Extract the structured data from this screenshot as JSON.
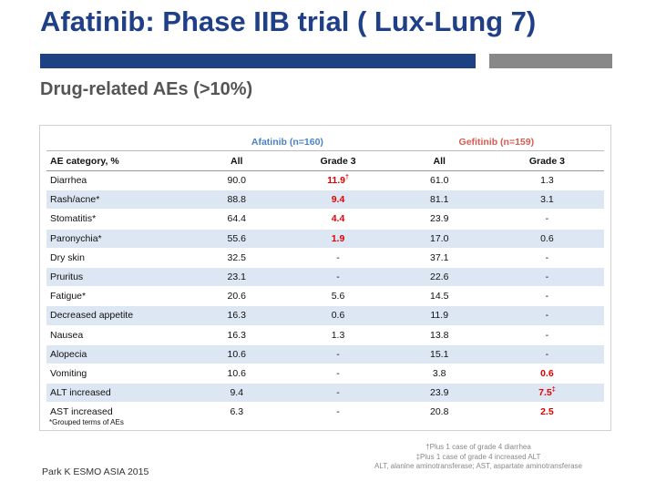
{
  "title": "Afatinib: Phase IIB trial ( Lux-Lung 7)",
  "subtitle": "Drug-related AEs (>10%)",
  "colors": {
    "title": "#1f3f86",
    "afatinib_header": "#4a83c4",
    "gefitinib_header": "#d95a50",
    "highlight": "#e20000",
    "row_alt": "#dde6f3"
  },
  "table": {
    "group_headers": [
      "Afatinib (n=160)",
      "Gefitinib (n=159)"
    ],
    "columns": [
      "AE category, %",
      "All",
      "Grade 3",
      "All",
      "Grade 3"
    ],
    "rows": [
      {
        "cat": "Diarrhea",
        "a_all": "90.0",
        "a_g3": "11.9",
        "a_g3_sup": "†",
        "a_g3_red": true,
        "g_all": "61.0",
        "g_g3": "1.3",
        "g_g3_sup": "",
        "g_g3_red": false
      },
      {
        "cat": "Rash/acne*",
        "a_all": "88.8",
        "a_g3": "9.4",
        "a_g3_sup": "",
        "a_g3_red": true,
        "g_all": "81.1",
        "g_g3": "3.1",
        "g_g3_sup": "",
        "g_g3_red": false
      },
      {
        "cat": "Stomatitis*",
        "a_all": "64.4",
        "a_g3": "4.4",
        "a_g3_sup": "",
        "a_g3_red": true,
        "g_all": "23.9",
        "g_g3": "-",
        "g_g3_sup": "",
        "g_g3_red": false
      },
      {
        "cat": "Paronychia*",
        "a_all": "55.6",
        "a_g3": "1.9",
        "a_g3_sup": "",
        "a_g3_red": true,
        "g_all": "17.0",
        "g_g3": "0.6",
        "g_g3_sup": "",
        "g_g3_red": false
      },
      {
        "cat": "Dry skin",
        "a_all": "32.5",
        "a_g3": "-",
        "a_g3_sup": "",
        "a_g3_red": false,
        "g_all": "37.1",
        "g_g3": "-",
        "g_g3_sup": "",
        "g_g3_red": false
      },
      {
        "cat": "Pruritus",
        "a_all": "23.1",
        "a_g3": "-",
        "a_g3_sup": "",
        "a_g3_red": false,
        "g_all": "22.6",
        "g_g3": "-",
        "g_g3_sup": "",
        "g_g3_red": false
      },
      {
        "cat": "Fatigue*",
        "a_all": "20.6",
        "a_g3": "5.6",
        "a_g3_sup": "",
        "a_g3_red": false,
        "g_all": "14.5",
        "g_g3": "-",
        "g_g3_sup": "",
        "g_g3_red": false
      },
      {
        "cat": "Decreased appetite",
        "a_all": "16.3",
        "a_g3": "0.6",
        "a_g3_sup": "",
        "a_g3_red": false,
        "g_all": "11.9",
        "g_g3": "-",
        "g_g3_sup": "",
        "g_g3_red": false
      },
      {
        "cat": "Nausea",
        "a_all": "16.3",
        "a_g3": "1.3",
        "a_g3_sup": "",
        "a_g3_red": false,
        "g_all": "13.8",
        "g_g3": "-",
        "g_g3_sup": "",
        "g_g3_red": false
      },
      {
        "cat": "Alopecia",
        "a_all": "10.6",
        "a_g3": "-",
        "a_g3_sup": "",
        "a_g3_red": false,
        "g_all": "15.1",
        "g_g3": "-",
        "g_g3_sup": "",
        "g_g3_red": false
      },
      {
        "cat": "Vomiting",
        "a_all": "10.6",
        "a_g3": "-",
        "a_g3_sup": "",
        "a_g3_red": false,
        "g_all": "3.8",
        "g_g3": "0.6",
        "g_g3_sup": "",
        "g_g3_red": true
      },
      {
        "cat": "ALT increased",
        "a_all": "9.4",
        "a_g3": "-",
        "a_g3_sup": "",
        "a_g3_red": false,
        "g_all": "23.9",
        "g_g3": "7.5",
        "g_g3_sup": "‡",
        "g_g3_red": true
      },
      {
        "cat": "AST increased",
        "a_all": "6.3",
        "a_g3": "-",
        "a_g3_sup": "",
        "a_g3_red": false,
        "g_all": "20.8",
        "g_g3": "2.5",
        "g_g3_sup": "",
        "g_g3_red": true
      }
    ]
  },
  "grouped_note": "*Grouped terms of AEs",
  "footnotes": [
    "†Plus 1 case of grade 4 diarrhea",
    "‡Plus 1 case of grade 4 increased ALT",
    "ALT, alanine aminotransferase; AST, aspartate aminotransferase"
  ],
  "source": "Park K ESMO ASIA 2015"
}
